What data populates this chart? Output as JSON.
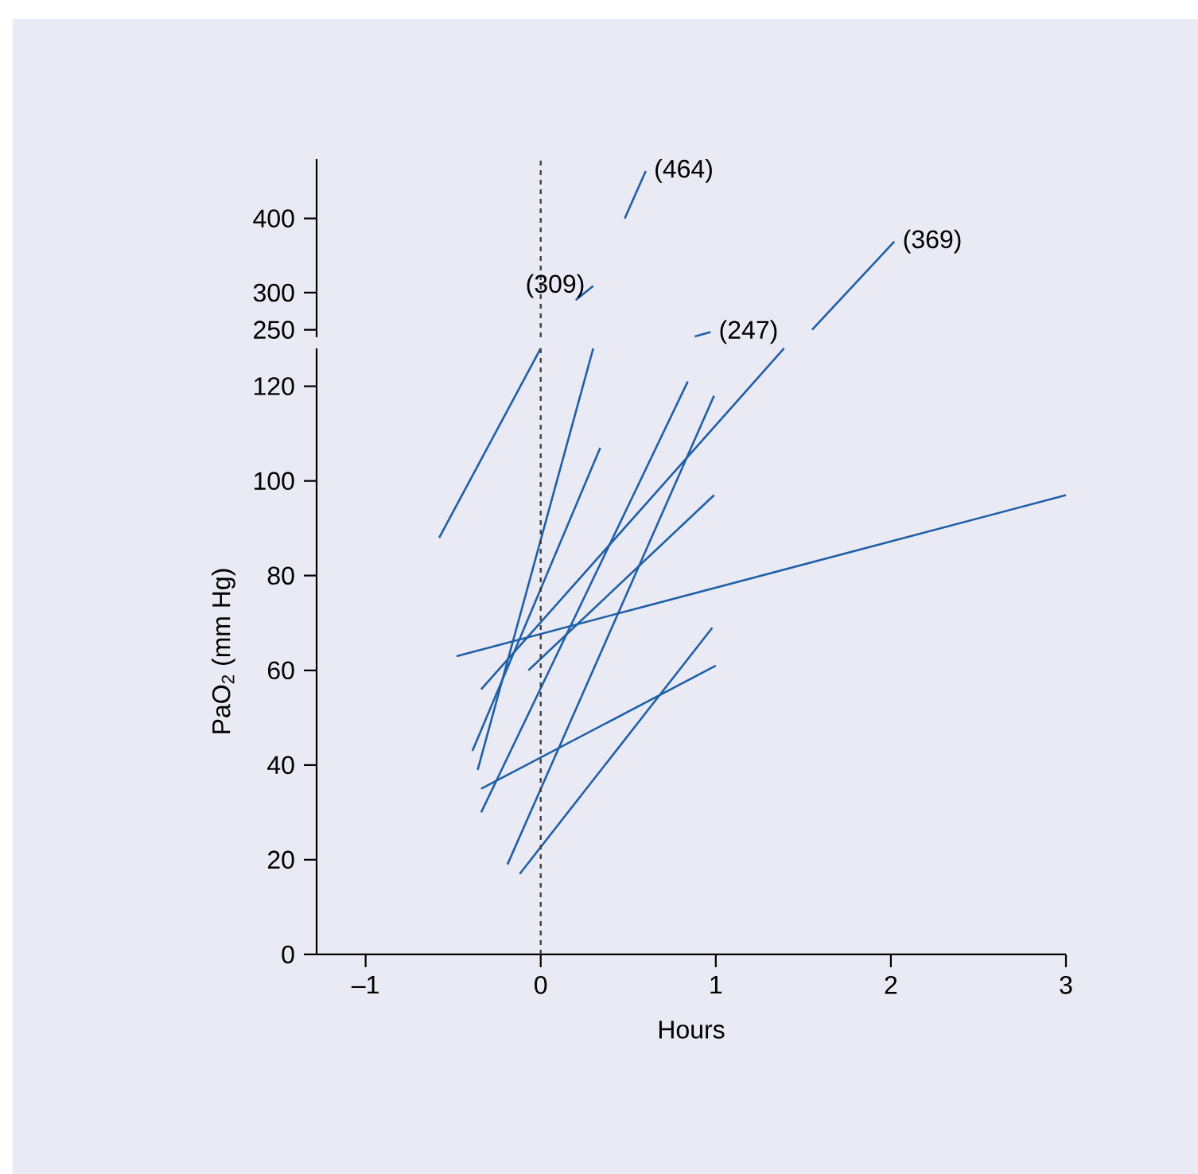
{
  "chart_data": [
    {
      "type": "line",
      "xlim": [
        -1.28,
        3
      ],
      "ylim": [
        240,
        480
      ],
      "yticks": [
        250,
        300,
        400
      ],
      "tick_labels": "y",
      "series": [
        {
          "color": "#1f5fa6",
          "x": [
            0.2,
            0.3
          ],
          "values": [
            290,
            309
          ]
        },
        {
          "color": "#1f5fa6",
          "x": [
            0.48,
            0.6
          ],
          "values": [
            400,
            464
          ]
        },
        {
          "color": "#1f5fa6",
          "x": [
            0.88,
            0.97
          ],
          "values": [
            241,
            247
          ]
        },
        {
          "color": "#1f5fa6",
          "x": [
            1.55,
            2.02
          ],
          "values": [
            250,
            369
          ]
        }
      ],
      "ref_lines": [
        {
          "axis": "x",
          "value": 0,
          "color": "#404040",
          "line_style": "dashed"
        }
      ],
      "annotations": [
        {
          "text": "(309)",
          "x": 0.3,
          "y": 309
        },
        {
          "text": "(464)",
          "x": 0.6,
          "y": 464
        },
        {
          "text": "(247)",
          "x": 0.97,
          "y": 247
        },
        {
          "text": "(369)",
          "x": 2.02,
          "y": 369
        }
      ]
    },
    {
      "type": "line",
      "xlim": [
        -1.28,
        3
      ],
      "ylim": [
        0,
        128
      ],
      "xticks": [
        {
          "value": -1,
          "label": "–1"
        },
        0,
        1,
        2,
        3
      ],
      "yticks": [
        0,
        20,
        40,
        60,
        80,
        100,
        120
      ],
      "xlabel": "Hours",
      "ylabel": "PaO$_{2}$ (mm Hg)",
      "series": [
        {
          "color": "#1f5fa6",
          "x": [
            -0.58,
            0
          ],
          "values": [
            88,
            128
          ]
        },
        {
          "color": "#1f5fa6",
          "x": [
            -0.36,
            0.3
          ],
          "values": [
            39,
            128
          ]
        },
        {
          "color": "#1f5fa6",
          "x": [
            -0.39,
            0.34
          ],
          "values": [
            43,
            107
          ]
        },
        {
          "color": "#1f5fa6",
          "x": [
            -0.48,
            3.0
          ],
          "values": [
            63,
            97
          ]
        },
        {
          "color": "#1f5fa6",
          "x": [
            -0.12,
            0.98
          ],
          "values": [
            17,
            69
          ]
        },
        {
          "color": "#1f5fa6",
          "x": [
            -0.34,
            1.0
          ],
          "values": [
            35,
            61
          ]
        },
        {
          "color": "#1f5fa6",
          "x": [
            -0.07,
            0.99
          ],
          "values": [
            60,
            97
          ]
        },
        {
          "color": "#1f5fa6",
          "x": [
            -0.19,
            0.99
          ],
          "values": [
            19,
            118
          ]
        },
        {
          "color": "#1f5fa6",
          "x": [
            -0.34,
            0.84
          ],
          "values": [
            30,
            121
          ]
        },
        {
          "color": "#1f5fa6",
          "x": [
            -0.34,
            1.39
          ],
          "values": [
            56,
            128
          ]
        }
      ],
      "ref_lines": [
        {
          "axis": "x",
          "value": 0,
          "color": "#404040",
          "line_style": "dashed"
        }
      ]
    }
  ]
}
